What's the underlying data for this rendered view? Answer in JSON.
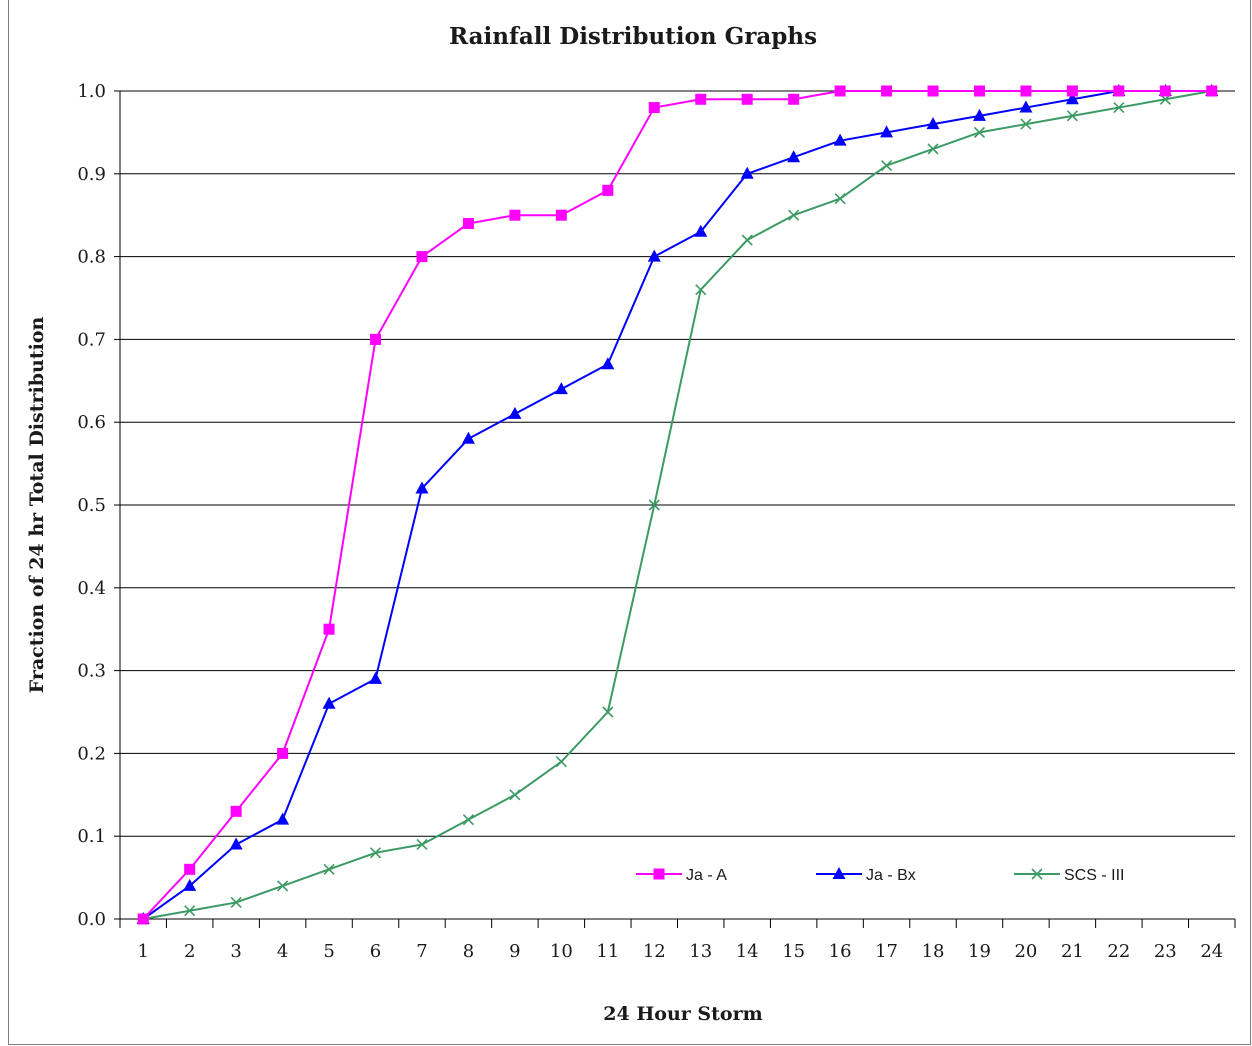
{
  "chart_data": {
    "type": "line",
    "title": "Rainfall Distribution Graphs",
    "xlabel": "24 Hour Storm",
    "ylabel": "Fraction of  24 hr Total Distribution",
    "categories": [
      "1",
      "2",
      "3",
      "4",
      "5",
      "6",
      "7",
      "8",
      "9",
      "10",
      "11",
      "12",
      "13",
      "14",
      "15",
      "16",
      "17",
      "18",
      "19",
      "20",
      "21",
      "22",
      "23",
      "24"
    ],
    "ylim": [
      0,
      1
    ],
    "y_ticks": [
      "0.0",
      "0.1",
      "0.2",
      "0.3",
      "0.4",
      "0.5",
      "0.6",
      "0.7",
      "0.8",
      "0.9",
      "1.0"
    ],
    "grid": "horizontal",
    "legend_position": "bottom-right",
    "series": [
      {
        "name": "Ja - A",
        "color": "#ff00ff",
        "marker": "square",
        "values": [
          0.0,
          0.06,
          0.13,
          0.2,
          0.35,
          0.7,
          0.8,
          0.84,
          0.85,
          0.85,
          0.88,
          0.98,
          0.99,
          0.99,
          0.99,
          1.0,
          1.0,
          1.0,
          1.0,
          1.0,
          1.0,
          1.0,
          1.0,
          1.0
        ]
      },
      {
        "name": "Ja - Bx",
        "color": "#0000ff",
        "marker": "triangle",
        "values": [
          0.0,
          0.04,
          0.09,
          0.12,
          0.26,
          0.29,
          0.52,
          0.58,
          0.61,
          0.64,
          0.67,
          0.8,
          0.83,
          0.9,
          0.92,
          0.94,
          0.95,
          0.96,
          0.97,
          0.98,
          0.99,
          1.0,
          1.0,
          1.0
        ]
      },
      {
        "name": "SCS - III",
        "color": "#3c9a64",
        "marker": "x",
        "values": [
          0.0,
          0.01,
          0.02,
          0.04,
          0.06,
          0.08,
          0.09,
          0.12,
          0.15,
          0.19,
          0.25,
          0.5,
          0.76,
          0.82,
          0.85,
          0.87,
          0.91,
          0.93,
          0.95,
          0.96,
          0.97,
          0.98,
          0.99,
          1.0
        ]
      }
    ]
  }
}
